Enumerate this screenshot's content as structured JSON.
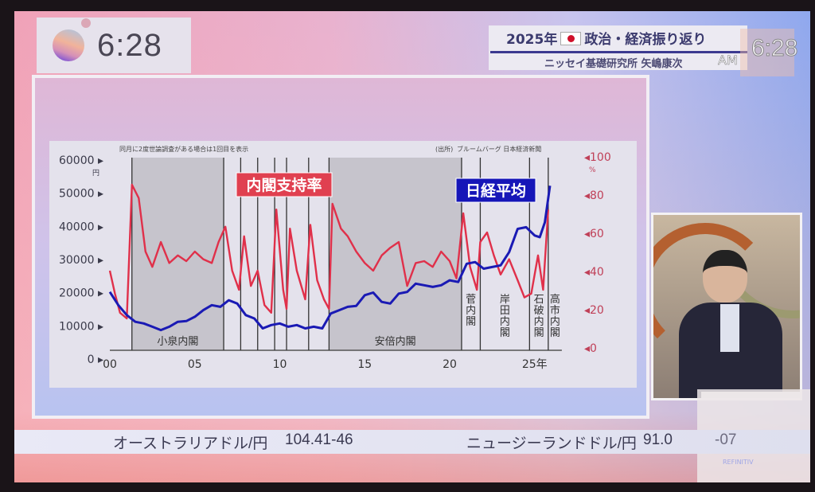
{
  "clock": {
    "time": "6:28",
    "logo_icon": "channel-logo-icon"
  },
  "segment": {
    "year": "2025年",
    "flag_icon": "japan-flag-icon",
    "topic": "政治・経済振り返り",
    "guest": "ニッセイ基礎研究所 矢嶋康次"
  },
  "watermark": {
    "am": "AM",
    "time": "6:28"
  },
  "ticker": {
    "items": [
      {
        "label": "オーストラリアドル/円",
        "value": "104.41-46"
      },
      {
        "label": "ニュージーランドドル/円",
        "value": "91.0",
        "value_tail": "-07"
      }
    ],
    "provider": "REFINITIV"
  },
  "chart_data": {
    "type": "line",
    "note": "同月に2度世論調査がある場合は1回目を表示",
    "source_tag": "出所",
    "source": "ブルームバーグ 日本経済新聞",
    "x_ticks": [
      "00",
      "05",
      "10",
      "15",
      "20",
      "25年"
    ],
    "x_tick_values": [
      2000,
      2005,
      2010,
      2015,
      2020,
      2025
    ],
    "xlim": [
      2000,
      2026.6
    ],
    "left_axis": {
      "unit": "円",
      "ticks": [
        "0",
        "10000",
        "20000",
        "30000",
        "40000",
        "50000",
        "60000"
      ],
      "ylim": [
        0,
        60000
      ]
    },
    "right_axis": {
      "unit": "%",
      "ticks": [
        "0",
        "20",
        "40",
        "60",
        "80",
        "100"
      ],
      "ylim": [
        0,
        100
      ]
    },
    "grid": false,
    "series": [
      {
        "name": "内閣支持率",
        "axis": "right",
        "color": "#e0304a",
        "x": [
          2000,
          2000.3,
          2000.6,
          2001,
          2001.3,
          2001.7,
          2002.1,
          2002.5,
          2003,
          2003.5,
          2004,
          2004.5,
          2005,
          2005.5,
          2006,
          2006.4,
          2006.8,
          2007.2,
          2007.6,
          2007.9,
          2008.3,
          2008.7,
          2009.1,
          2009.5,
          2009.8,
          2010.2,
          2010.4,
          2010.6,
          2011,
          2011.5,
          2011.8,
          2012.2,
          2012.6,
          2012.9,
          2013.1,
          2013.6,
          2014,
          2014.5,
          2015,
          2015.5,
          2016,
          2016.5,
          2017,
          2017.5,
          2018,
          2018.5,
          2019,
          2019.5,
          2020,
          2020.4,
          2020.8,
          2021.2,
          2021.6,
          2021.8,
          2022.2,
          2022.6,
          2023,
          2023.5,
          2024,
          2024.4,
          2024.8,
          2025.2,
          2025.5,
          2025.8
        ],
        "y": [
          40,
          28,
          18,
          15,
          85,
          78,
          50,
          42,
          55,
          44,
          48,
          45,
          50,
          46,
          44,
          55,
          63,
          40,
          30,
          58,
          32,
          40,
          22,
          18,
          72,
          30,
          20,
          62,
          40,
          25,
          64,
          35,
          25,
          20,
          75,
          62,
          58,
          50,
          44,
          40,
          48,
          52,
          55,
          32,
          44,
          45,
          42,
          50,
          45,
          36,
          70,
          42,
          30,
          55,
          60,
          48,
          38,
          46,
          35,
          26,
          28,
          48,
          30,
          72
        ]
      },
      {
        "name": "日経平均",
        "axis": "left",
        "color": "#1a1ab4",
        "x": [
          2000,
          2000.5,
          2001,
          2001.5,
          2002,
          2002.5,
          2003,
          2003.5,
          2004,
          2004.5,
          2005,
          2005.5,
          2006,
          2006.5,
          2007,
          2007.5,
          2008,
          2008.5,
          2009,
          2009.5,
          2010,
          2010.5,
          2011,
          2011.5,
          2012,
          2012.5,
          2013,
          2013.5,
          2014,
          2014.5,
          2015,
          2015.5,
          2016,
          2016.5,
          2017,
          2017.5,
          2018,
          2018.5,
          2019,
          2019.5,
          2020,
          2020.5,
          2021,
          2021.5,
          2022,
          2022.5,
          2023,
          2023.5,
          2024,
          2024.5,
          2025,
          2025.3,
          2025.6,
          2025.9
        ],
        "y": [
          20000,
          16000,
          13000,
          11000,
          10500,
          9500,
          8500,
          9500,
          11000,
          11200,
          12500,
          14500,
          16000,
          15500,
          17500,
          16500,
          13000,
          12000,
          9000,
          10000,
          10500,
          9500,
          10000,
          9000,
          9500,
          9000,
          13500,
          14500,
          15500,
          15800,
          19000,
          19800,
          17000,
          16500,
          19500,
          20000,
          22500,
          22000,
          21500,
          22000,
          23500,
          23000,
          28500,
          29000,
          27000,
          27500,
          28000,
          32000,
          39000,
          39500,
          37000,
          36500,
          41000,
          52000
        ]
      }
    ],
    "cabinets": [
      {
        "label": "小泉内閣",
        "start": 2001.3,
        "end": 2006.7,
        "shaded": true
      },
      {
        "label": "安倍内閣",
        "start": 2012.9,
        "end": 2020.7,
        "shaded": true
      },
      {
        "label": "菅内閣",
        "start": 2020.7,
        "end": 2021.8,
        "shaded": false
      },
      {
        "label": "岸田内閣",
        "start": 2021.8,
        "end": 2024.7,
        "shaded": false
      },
      {
        "label": "石破内閣",
        "start": 2024.7,
        "end": 2025.8,
        "shaded": false
      },
      {
        "label": "高市内閣",
        "start": 2025.8,
        "end": 2026.6,
        "shaded": false
      }
    ],
    "changes": [
      2001.3,
      2006.7,
      2007.7,
      2008.7,
      2009.7,
      2010.4,
      2011.7,
      2012.9,
      2020.7,
      2021.8,
      2024.7,
      2025.8
    ],
    "series_label_boxes": [
      {
        "series": "内閣支持率",
        "bg": "#e04050"
      },
      {
        "series": "日経平均",
        "bg": "#1616b8"
      }
    ]
  }
}
